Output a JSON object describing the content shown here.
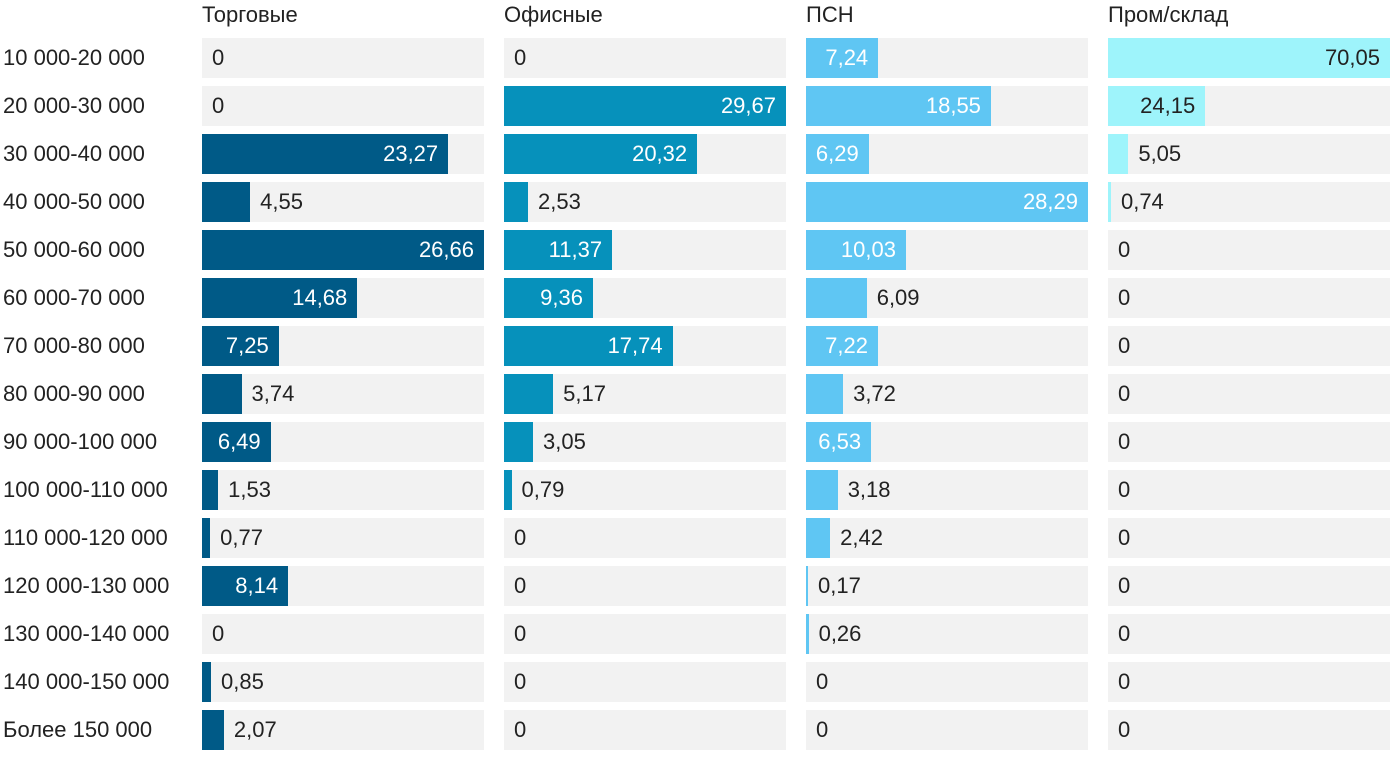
{
  "chart_data": {
    "type": "bar",
    "orientation": "horizontal",
    "layout": "small-multiples",
    "categories": [
      "10 000-20 000",
      "20 000-30 000",
      "30 000-40 000",
      "40 000-50 000",
      "50 000-60 000",
      "60 000-70 000",
      "70 000-80 000",
      "80 000-90 000",
      "90 000-100 000",
      "100 000-110 000",
      "110 000-120 000",
      "120 000-130 000",
      "130 000-140 000",
      "140 000-150 000",
      "Более 150 000"
    ],
    "series": [
      {
        "name": "Торговые",
        "color": "#005a87",
        "values": [
          0,
          0,
          23.27,
          4.55,
          26.66,
          14.68,
          7.25,
          3.74,
          6.49,
          1.53,
          0.77,
          8.14,
          0,
          0.85,
          2.07
        ],
        "labels": [
          "0",
          "0",
          "23,27",
          "4,55",
          "26,66",
          "14,68",
          "7,25",
          "3,74",
          "6,49",
          "1,53",
          "0,77",
          "8,14",
          "0",
          "0,85",
          "2,07"
        ]
      },
      {
        "name": "Офисные",
        "color": "#0691bb",
        "values": [
          0,
          29.67,
          20.32,
          2.53,
          11.37,
          9.36,
          17.74,
          5.17,
          3.05,
          0.79,
          0,
          0,
          0,
          0,
          0
        ],
        "labels": [
          "0",
          "29,67",
          "20,32",
          "2,53",
          "11,37",
          "9,36",
          "17,74",
          "5,17",
          "3,05",
          "0,79",
          "0",
          "0",
          "0",
          "0",
          "0"
        ]
      },
      {
        "name": "ПСН",
        "color": "#5fc6f3",
        "values": [
          7.24,
          18.55,
          6.29,
          28.29,
          10.03,
          6.09,
          7.22,
          3.72,
          6.53,
          3.18,
          2.42,
          0.17,
          0.26,
          0,
          0
        ],
        "labels": [
          "7,24",
          "18,55",
          "6,29",
          "28,29",
          "10,03",
          "6,09",
          "7,22",
          "3,72",
          "6,53",
          "3,18",
          "2,42",
          "0,17",
          "0,26",
          "0",
          "0"
        ]
      },
      {
        "name": "Пром/склад",
        "color": "#9ef4fb",
        "values": [
          70.05,
          24.15,
          5.05,
          0.74,
          0,
          0,
          0,
          0,
          0,
          0,
          0,
          0,
          0,
          0,
          0
        ],
        "labels": [
          "70,05",
          "24,15",
          "5,05",
          "0,74",
          "0",
          "0",
          "0",
          "0",
          "0",
          "0",
          "0",
          "0",
          "0",
          "0",
          "0"
        ]
      }
    ],
    "track_color": "#f2f2f2",
    "grid": false,
    "legend": "none"
  }
}
